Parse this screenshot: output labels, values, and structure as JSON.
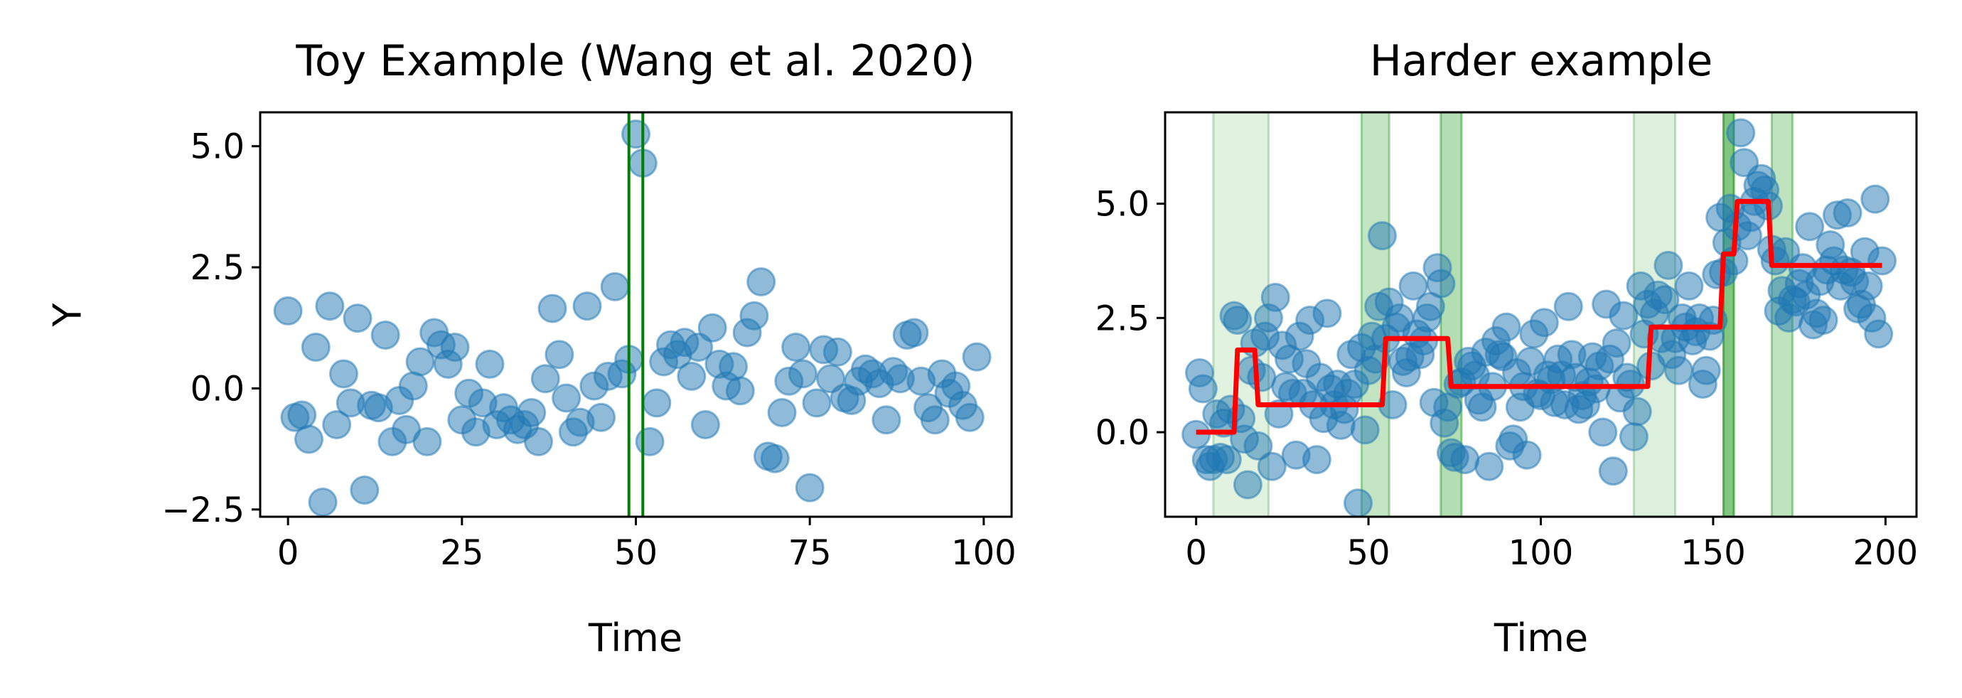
{
  "chart_data": [
    {
      "type": "scatter",
      "title": "Toy Example (Wang et al. 2020)",
      "xlabel": "Time",
      "ylabel": "Y",
      "xlim": [
        -4,
        104
      ],
      "ylim": [
        -2.65,
        5.7
      ],
      "xticks": [
        0,
        25,
        50,
        75,
        100
      ],
      "xtick_labels": [
        "0",
        "25",
        "50",
        "75",
        "100"
      ],
      "yticks": [
        -2.5,
        0.0,
        2.5,
        5.0
      ],
      "ytick_labels": [
        "−2.5",
        "0.0",
        "2.5",
        "5.0"
      ],
      "marker_color": "#1f77b4",
      "changepoint_color": "#008000",
      "changepoints": [
        49,
        51
      ],
      "points": [
        [
          0,
          1.6
        ],
        [
          1,
          -0.6
        ],
        [
          2,
          -0.55
        ],
        [
          3,
          -1.05
        ],
        [
          4,
          0.85
        ],
        [
          5,
          -2.35
        ],
        [
          6,
          1.7
        ],
        [
          7,
          -0.75
        ],
        [
          8,
          0.3
        ],
        [
          9,
          -0.3
        ],
        [
          10,
          1.45
        ],
        [
          11,
          -2.1
        ],
        [
          12,
          -0.35
        ],
        [
          13,
          -0.4
        ],
        [
          14,
          1.1
        ],
        [
          15,
          -1.1
        ],
        [
          16,
          -0.25
        ],
        [
          17,
          -0.85
        ],
        [
          18,
          0.05
        ],
        [
          19,
          0.55
        ],
        [
          20,
          -1.1
        ],
        [
          21,
          1.15
        ],
        [
          22,
          0.9
        ],
        [
          23,
          0.5
        ],
        [
          24,
          0.85
        ],
        [
          25,
          -0.65
        ],
        [
          26,
          -0.1
        ],
        [
          27,
          -0.9
        ],
        [
          28,
          -0.3
        ],
        [
          29,
          0.5
        ],
        [
          30,
          -0.75
        ],
        [
          31,
          -0.4
        ],
        [
          32,
          -0.65
        ],
        [
          33,
          -0.85
        ],
        [
          34,
          -0.75
        ],
        [
          35,
          -0.5
        ],
        [
          36,
          -1.1
        ],
        [
          37,
          0.2
        ],
        [
          38,
          1.65
        ],
        [
          39,
          0.7
        ],
        [
          40,
          -0.2
        ],
        [
          41,
          -0.9
        ],
        [
          42,
          -0.7
        ],
        [
          43,
          1.7
        ],
        [
          44,
          0.05
        ],
        [
          45,
          -0.6
        ],
        [
          46,
          0.25
        ],
        [
          47,
          2.1
        ],
        [
          48,
          0.3
        ],
        [
          49,
          0.6
        ],
        [
          50,
          5.25
        ],
        [
          51,
          4.65
        ],
        [
          52,
          -1.1
        ],
        [
          53,
          -0.3
        ],
        [
          54,
          0.55
        ],
        [
          55,
          0.9
        ],
        [
          56,
          0.7
        ],
        [
          57,
          0.95
        ],
        [
          58,
          0.25
        ],
        [
          59,
          0.85
        ],
        [
          60,
          -0.75
        ],
        [
          61,
          1.25
        ],
        [
          62,
          0.5
        ],
        [
          63,
          0.05
        ],
        [
          64,
          0.45
        ],
        [
          65,
          -0.05
        ],
        [
          66,
          1.15
        ],
        [
          67,
          1.5
        ],
        [
          68,
          2.2
        ],
        [
          69,
          -1.4
        ],
        [
          70,
          -1.45
        ],
        [
          71,
          -0.5
        ],
        [
          72,
          0.15
        ],
        [
          73,
          0.85
        ],
        [
          74,
          0.3
        ],
        [
          75,
          -2.05
        ],
        [
          76,
          -0.3
        ],
        [
          77,
          0.8
        ],
        [
          78,
          0.2
        ],
        [
          79,
          0.75
        ],
        [
          80,
          -0.2
        ],
        [
          81,
          -0.25
        ],
        [
          82,
          0.15
        ],
        [
          83,
          0.4
        ],
        [
          84,
          0.3
        ],
        [
          85,
          0.1
        ],
        [
          86,
          -0.65
        ],
        [
          87,
          0.35
        ],
        [
          88,
          0.2
        ],
        [
          89,
          1.1
        ],
        [
          90,
          1.15
        ],
        [
          91,
          0.15
        ],
        [
          92,
          -0.4
        ],
        [
          93,
          -0.65
        ],
        [
          94,
          0.3
        ],
        [
          95,
          -0.1
        ],
        [
          96,
          0.05
        ],
        [
          97,
          -0.35
        ],
        [
          98,
          -0.6
        ],
        [
          99,
          0.65
        ]
      ]
    },
    {
      "type": "scatter",
      "title": "Harder example",
      "xlabel": "Time",
      "xlim": [
        -9,
        209
      ],
      "ylim": [
        -1.85,
        7.0
      ],
      "xticks": [
        0,
        50,
        100,
        150,
        200
      ],
      "xtick_labels": [
        "0",
        "50",
        "100",
        "150",
        "200"
      ],
      "yticks": [
        0.0,
        2.5,
        5.0
      ],
      "ytick_labels": [
        "0.0",
        "2.5",
        "5.0"
      ],
      "marker_color": "#1f77b4",
      "band_color": "#2ca02c",
      "fit_color": "#ff0000",
      "shaded_intervals": [
        {
          "x0": 5,
          "x1": 21,
          "alpha": 0.14
        },
        {
          "x0": 48,
          "x1": 56,
          "alpha": 0.28
        },
        {
          "x0": 71,
          "x1": 77,
          "alpha": 0.36
        },
        {
          "x0": 127,
          "x1": 139,
          "alpha": 0.16
        },
        {
          "x0": 153,
          "x1": 156,
          "alpha": 0.6
        },
        {
          "x0": 167,
          "x1": 173,
          "alpha": 0.3
        }
      ],
      "fitted_mean": [
        [
          0,
          0.0
        ],
        [
          11,
          0.0
        ],
        [
          12,
          1.8
        ],
        [
          17,
          1.8
        ],
        [
          18,
          0.6
        ],
        [
          54,
          0.6
        ],
        [
          55,
          2.05
        ],
        [
          73,
          2.05
        ],
        [
          74,
          1.0
        ],
        [
          131,
          1.0
        ],
        [
          132,
          2.3
        ],
        [
          152,
          2.3
        ],
        [
          153,
          3.9
        ],
        [
          156,
          3.9
        ],
        [
          157,
          5.05
        ],
        [
          166,
          5.05
        ],
        [
          167,
          3.65
        ],
        [
          199,
          3.65
        ]
      ],
      "points": [
        [
          0,
          -0.05
        ],
        [
          1,
          1.3
        ],
        [
          2,
          0.95
        ],
        [
          3,
          -0.6
        ],
        [
          4,
          -0.75
        ],
        [
          5,
          -0.6
        ],
        [
          6,
          0.4
        ],
        [
          7,
          -0.55
        ],
        [
          8,
          0.2
        ],
        [
          9,
          -0.6
        ],
        [
          10,
          0.5
        ],
        [
          11,
          2.55
        ],
        [
          12,
          2.45
        ],
        [
          13,
          0.3
        ],
        [
          14,
          -0.15
        ],
        [
          15,
          -1.15
        ],
        [
          16,
          1.35
        ],
        [
          17,
          1.95
        ],
        [
          18,
          -0.3
        ],
        [
          19,
          1.2
        ],
        [
          20,
          2.1
        ],
        [
          21,
          2.5
        ],
        [
          22,
          -0.75
        ],
        [
          23,
          2.95
        ],
        [
          24,
          0.4
        ],
        [
          25,
          1.9
        ],
        [
          26,
          1.0
        ],
        [
          27,
          1.6
        ],
        [
          28,
          0.85
        ],
        [
          29,
          -0.5
        ],
        [
          30,
          2.1
        ],
        [
          31,
          0.85
        ],
        [
          32,
          1.5
        ],
        [
          33,
          2.45
        ],
        [
          34,
          0.6
        ],
        [
          35,
          -0.6
        ],
        [
          36,
          1.2
        ],
        [
          37,
          0.3
        ],
        [
          38,
          2.6
        ],
        [
          39,
          0.95
        ],
        [
          40,
          0.6
        ],
        [
          41,
          1.05
        ],
        [
          42,
          0.15
        ],
        [
          43,
          0.5
        ],
        [
          44,
          0.85
        ],
        [
          45,
          1.7
        ],
        [
          46,
          1.05
        ],
        [
          47,
          -1.55
        ],
        [
          48,
          1.85
        ],
        [
          49,
          0.05
        ],
        [
          50,
          1.35
        ],
        [
          51,
          2.1
        ],
        [
          52,
          1.6
        ],
        [
          53,
          2.75
        ],
        [
          54,
          4.3
        ],
        [
          55,
          2.05
        ],
        [
          56,
          2.85
        ],
        [
          57,
          0.6
        ],
        [
          58,
          2.3
        ],
        [
          59,
          2.5
        ],
        [
          60,
          1.55
        ],
        [
          61,
          1.3
        ],
        [
          62,
          1.65
        ],
        [
          63,
          3.2
        ],
        [
          64,
          2.15
        ],
        [
          65,
          1.7
        ],
        [
          66,
          2.0
        ],
        [
          67,
          2.5
        ],
        [
          68,
          2.75
        ],
        [
          69,
          0.65
        ],
        [
          70,
          3.6
        ],
        [
          71,
          3.25
        ],
        [
          72,
          0.2
        ],
        [
          73,
          0.55
        ],
        [
          74,
          -0.45
        ],
        [
          75,
          -0.55
        ],
        [
          76,
          1.05
        ],
        [
          77,
          1.1
        ],
        [
          78,
          -0.6
        ],
        [
          79,
          1.55
        ],
        [
          80,
          1.45
        ],
        [
          81,
          1.25
        ],
        [
          82,
          0.7
        ],
        [
          83,
          0.55
        ],
        [
          84,
          1.75
        ],
        [
          85,
          -0.75
        ],
        [
          86,
          1.0
        ],
        [
          87,
          2.0
        ],
        [
          88,
          1.7
        ],
        [
          89,
          1.65
        ],
        [
          90,
          2.3
        ],
        [
          91,
          -0.3
        ],
        [
          92,
          -0.15
        ],
        [
          93,
          1.3
        ],
        [
          94,
          0.55
        ],
        [
          95,
          1.0
        ],
        [
          96,
          -0.5
        ],
        [
          97,
          1.55
        ],
        [
          98,
          2.15
        ],
        [
          99,
          0.85
        ],
        [
          100,
          0.8
        ],
        [
          101,
          2.4
        ],
        [
          102,
          1.25
        ],
        [
          103,
          1.15
        ],
        [
          104,
          0.65
        ],
        [
          105,
          1.6
        ],
        [
          106,
          1.25
        ],
        [
          107,
          0.6
        ],
        [
          108,
          2.75
        ],
        [
          109,
          1.7
        ],
        [
          110,
          1.2
        ],
        [
          111,
          0.5
        ],
        [
          112,
          0.8
        ],
        [
          113,
          0.6
        ],
        [
          114,
          1.1
        ],
        [
          115,
          1.65
        ],
        [
          116,
          0.95
        ],
        [
          117,
          1.45
        ],
        [
          118,
          0.0
        ],
        [
          119,
          2.8
        ],
        [
          120,
          1.6
        ],
        [
          121,
          -0.85
        ],
        [
          122,
          1.95
        ],
        [
          123,
          0.75
        ],
        [
          124,
          2.55
        ],
        [
          125,
          1.2
        ],
        [
          126,
          1.05
        ],
        [
          127,
          -0.1
        ],
        [
          128,
          0.45
        ],
        [
          129,
          3.2
        ],
        [
          130,
          2.15
        ],
        [
          131,
          2.8
        ],
        [
          132,
          1.45
        ],
        [
          133,
          2.6
        ],
        [
          134,
          3.0
        ],
        [
          135,
          2.05
        ],
        [
          136,
          2.9
        ],
        [
          137,
          3.65
        ],
        [
          138,
          1.7
        ],
        [
          139,
          2.05
        ],
        [
          140,
          1.35
        ],
        [
          141,
          2.5
        ],
        [
          142,
          2.3
        ],
        [
          143,
          3.2
        ],
        [
          144,
          2.0
        ],
        [
          145,
          2.2
        ],
        [
          146,
          2.5
        ],
        [
          147,
          1.05
        ],
        [
          148,
          1.35
        ],
        [
          149,
          2.1
        ],
        [
          150,
          2.45
        ],
        [
          151,
          3.45
        ],
        [
          152,
          4.7
        ],
        [
          153,
          3.5
        ],
        [
          154,
          4.15
        ],
        [
          155,
          4.9
        ],
        [
          156,
          3.75
        ],
        [
          157,
          4.5
        ],
        [
          158,
          6.55
        ],
        [
          159,
          5.9
        ],
        [
          160,
          4.3
        ],
        [
          161,
          4.7
        ],
        [
          162,
          5.05
        ],
        [
          163,
          5.4
        ],
        [
          164,
          5.55
        ],
        [
          165,
          5.3
        ],
        [
          166,
          4.95
        ],
        [
          167,
          4.0
        ],
        [
          168,
          3.75
        ],
        [
          169,
          2.65
        ],
        [
          170,
          3.1
        ],
        [
          171,
          3.95
        ],
        [
          172,
          2.5
        ],
        [
          173,
          2.9
        ],
        [
          174,
          2.85
        ],
        [
          175,
          3.25
        ],
        [
          176,
          3.6
        ],
        [
          177,
          3.0
        ],
        [
          178,
          4.5
        ],
        [
          179,
          2.35
        ],
        [
          180,
          2.6
        ],
        [
          181,
          3.3
        ],
        [
          182,
          2.45
        ],
        [
          183,
          3.55
        ],
        [
          184,
          4.1
        ],
        [
          185,
          3.75
        ],
        [
          186,
          4.75
        ],
        [
          187,
          3.2
        ],
        [
          188,
          3.55
        ],
        [
          189,
          4.8
        ],
        [
          190,
          3.5
        ],
        [
          191,
          3.3
        ],
        [
          192,
          2.7
        ],
        [
          193,
          2.8
        ],
        [
          194,
          3.95
        ],
        [
          195,
          3.2
        ],
        [
          196,
          2.5
        ],
        [
          197,
          5.1
        ],
        [
          198,
          2.15
        ],
        [
          199,
          3.75
        ]
      ]
    }
  ]
}
